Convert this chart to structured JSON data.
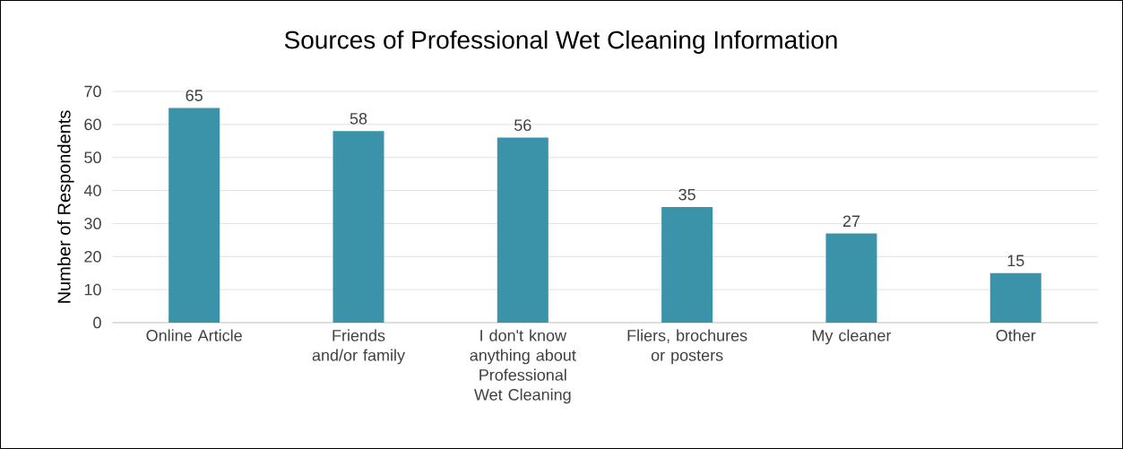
{
  "chart_data": {
    "type": "bar",
    "title": "Sources of Professional Wet Cleaning Information",
    "ylabel": "Number of Respondents",
    "categories": [
      "Online Article",
      "Friends and/or family",
      "I don't know anything about Professional Wet Cleaning",
      "Fliers, brochures or posters",
      "My cleaner",
      "Other"
    ],
    "values": [
      65,
      58,
      56,
      35,
      27,
      15
    ],
    "color": "#3a93a8",
    "ylim": [
      0,
      70
    ],
    "yticks": [
      0,
      10,
      20,
      30,
      40,
      50,
      60,
      70
    ],
    "grid": "y",
    "data_labels": true
  }
}
